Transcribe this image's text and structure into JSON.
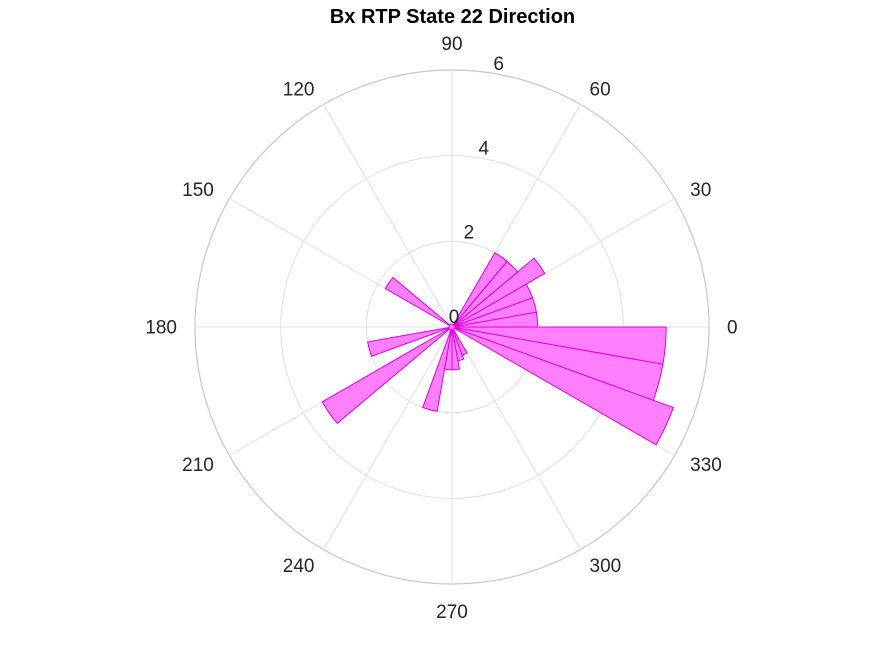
{
  "chart_data": {
    "type": "polar-histogram",
    "title": "Bx  RTP State 22 Direction",
    "theta_ticks": [
      "0",
      "30",
      "60",
      "90",
      "120",
      "150",
      "180",
      "210",
      "240",
      "270",
      "300",
      "330"
    ],
    "theta_tick_values": [
      0,
      30,
      60,
      90,
      120,
      150,
      180,
      210,
      240,
      270,
      300,
      330
    ],
    "r_ticks": [
      "0",
      "2",
      "4",
      "6"
    ],
    "r_tick_values": [
      0,
      2,
      4,
      6
    ],
    "rlim": [
      0,
      6
    ],
    "bin_width_deg": 10,
    "bins": [
      {
        "start": 0,
        "end": 10,
        "value": 2.0
      },
      {
        "start": 10,
        "end": 20,
        "value": 2.0
      },
      {
        "start": 20,
        "end": 30,
        "value": 2.0
      },
      {
        "start": 30,
        "end": 40,
        "value": 2.5
      },
      {
        "start": 40,
        "end": 50,
        "value": 2.0
      },
      {
        "start": 50,
        "end": 60,
        "value": 2.0
      },
      {
        "start": 140,
        "end": 150,
        "value": 1.8
      },
      {
        "start": 190,
        "end": 200,
        "value": 2.0
      },
      {
        "start": 210,
        "end": 220,
        "value": 3.5
      },
      {
        "start": 250,
        "end": 260,
        "value": 2.0
      },
      {
        "start": 260,
        "end": 270,
        "value": 1.0
      },
      {
        "start": 270,
        "end": 280,
        "value": 1.0
      },
      {
        "start": 280,
        "end": 290,
        "value": 0.8
      },
      {
        "start": 290,
        "end": 300,
        "value": 0.7
      },
      {
        "start": 330,
        "end": 340,
        "value": 5.5
      },
      {
        "start": 340,
        "end": 350,
        "value": 5.0
      },
      {
        "start": 350,
        "end": 360,
        "value": 5.0
      }
    ],
    "grid": true,
    "colors": {
      "fill": "#ff80ff",
      "edge": "#e000e0",
      "grid": "#e0e0e0",
      "axis": "#c8c8c8",
      "text": "#262626"
    }
  }
}
